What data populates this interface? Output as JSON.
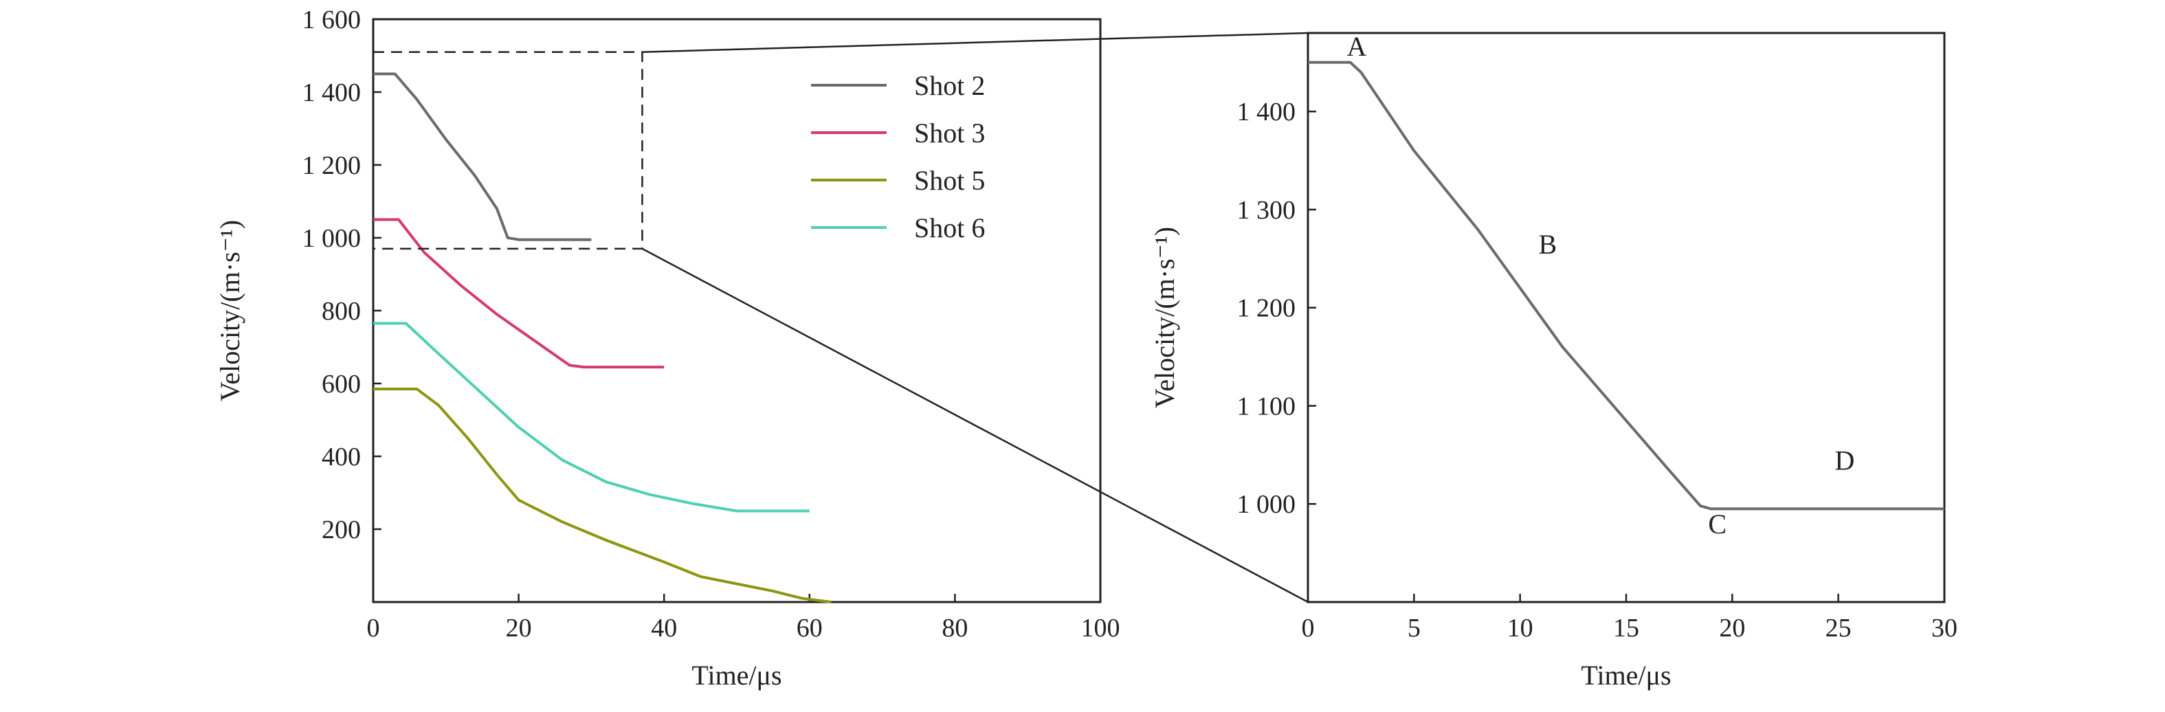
{
  "chart_data": [
    {
      "type": "line",
      "xlabel": "Time/μs",
      "ylabel": "Velocity/(m·s⁻¹)",
      "xlim": [
        0,
        100
      ],
      "ylim": [
        0,
        1600
      ],
      "x_ticks": [
        0,
        20,
        40,
        60,
        80,
        100
      ],
      "x_tick_labels": [
        "0",
        "20",
        "40",
        "60",
        "80",
        "100"
      ],
      "y_ticks": [
        200,
        400,
        600,
        800,
        1000,
        1200,
        1400,
        1600
      ],
      "y_tick_labels": [
        "200",
        "400",
        "600",
        "800",
        "1 000",
        "1 200",
        "1 400",
        "1 600"
      ],
      "grid": false,
      "legend_position": "top-right",
      "zoom_box": {
        "x": [
          0,
          37
        ],
        "y": [
          970,
          1510
        ]
      },
      "series": [
        {
          "name": "Shot 2",
          "color": "#6b6b6b",
          "points": [
            [
              0,
              1450
            ],
            [
              3,
              1450
            ],
            [
              6,
              1380
            ],
            [
              10,
              1270
            ],
            [
              14,
              1170
            ],
            [
              17,
              1080
            ],
            [
              18.5,
              1000
            ],
            [
              20,
              995
            ],
            [
              30,
              995
            ]
          ]
        },
        {
          "name": "Shot 3",
          "color": "#d63a6c",
          "points": [
            [
              0,
              1050
            ],
            [
              3.5,
              1050
            ],
            [
              7,
              960
            ],
            [
              12,
              870
            ],
            [
              17,
              790
            ],
            [
              22,
              720
            ],
            [
              27,
              650
            ],
            [
              29,
              645
            ],
            [
              40,
              645
            ]
          ]
        },
        {
          "name": "Shot 5",
          "color": "#8c9612",
          "points": [
            [
              0,
              585
            ],
            [
              6,
              585
            ],
            [
              9,
              540
            ],
            [
              13,
              450
            ],
            [
              17,
              350
            ],
            [
              20,
              280
            ],
            [
              26,
              220
            ],
            [
              32,
              170
            ],
            [
              40,
              110
            ],
            [
              45,
              70
            ],
            [
              50,
              50
            ],
            [
              55,
              30
            ],
            [
              59,
              10
            ],
            [
              63,
              0
            ]
          ]
        },
        {
          "name": "Shot 6",
          "color": "#4fcfb4",
          "points": [
            [
              0,
              765
            ],
            [
              4.5,
              765
            ],
            [
              8,
              700
            ],
            [
              14,
              590
            ],
            [
              20,
              480
            ],
            [
              26,
              390
            ],
            [
              32,
              330
            ],
            [
              38,
              295
            ],
            [
              44,
              270
            ],
            [
              50,
              250
            ],
            [
              60,
              250
            ]
          ]
        }
      ]
    },
    {
      "type": "line",
      "xlabel": "Time/μs",
      "ylabel": "Velocity/(m·s⁻¹)",
      "xlim": [
        0,
        30
      ],
      "ylim": [
        900,
        1480
      ],
      "x_ticks": [
        0,
        5,
        10,
        15,
        20,
        25,
        30
      ],
      "x_tick_labels": [
        "0",
        "5",
        "10",
        "15",
        "20",
        "25",
        "30"
      ],
      "y_ticks": [
        1000,
        1100,
        1200,
        1300,
        1400
      ],
      "y_tick_labels": [
        "1 000",
        "1 100",
        "1 200",
        "1 300",
        "1 400"
      ],
      "grid": false,
      "series": [
        {
          "color": "#6b6b6b",
          "points": [
            [
              0,
              1450
            ],
            [
              2,
              1450
            ],
            [
              2.5,
              1440
            ],
            [
              5,
              1360
            ],
            [
              8,
              1280
            ],
            [
              10,
              1220
            ],
            [
              12,
              1160
            ],
            [
              15,
              1085
            ],
            [
              17,
              1035
            ],
            [
              18.5,
              998
            ],
            [
              19,
              995
            ],
            [
              30,
              995
            ]
          ]
        }
      ],
      "annotations": [
        {
          "text": "A",
          "x": 2.3,
          "y": 1457
        },
        {
          "text": "B",
          "x": 11.3,
          "y": 1255
        },
        {
          "text": "C",
          "x": 19.3,
          "y": 970
        },
        {
          "text": "D",
          "x": 25.3,
          "y": 1035
        }
      ]
    }
  ]
}
